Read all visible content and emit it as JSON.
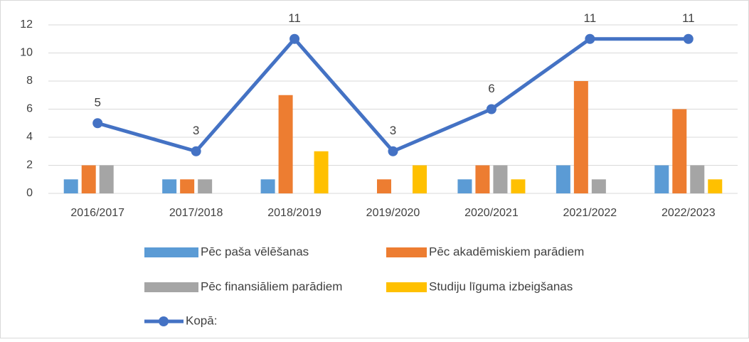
{
  "chart_data": {
    "type": "bar",
    "categories": [
      "2016/2017",
      "2017/2018",
      "2018/2019",
      "2019/2020",
      "2020/2021",
      "2021/2022",
      "2022/2023"
    ],
    "series": [
      {
        "name": "Pēc paša vēlēšanas",
        "color": "#5b9bd5",
        "values": [
          1,
          1,
          1,
          0,
          1,
          2,
          2
        ]
      },
      {
        "name": "Pēc akadēmiskiem parādiem",
        "color": "#ed7d31",
        "values": [
          2,
          1,
          7,
          1,
          2,
          8,
          6
        ]
      },
      {
        "name": "Pēc finansiāliem parādiem",
        "color": "#a5a5a5",
        "values": [
          2,
          1,
          0,
          0,
          2,
          1,
          2
        ]
      },
      {
        "name": "Studiju līguma izbeigšanas",
        "color": "#ffc000",
        "values": [
          0,
          0,
          3,
          2,
          1,
          0,
          1
        ]
      },
      {
        "name": "Kopā:",
        "color": "#4472c4",
        "type": "line",
        "values": [
          5,
          3,
          11,
          3,
          6,
          11,
          11
        ]
      }
    ],
    "ylim": [
      0,
      12
    ],
    "yticks": [
      0,
      2,
      4,
      6,
      8,
      10,
      12
    ],
    "grid": true,
    "legend": "bottom"
  }
}
